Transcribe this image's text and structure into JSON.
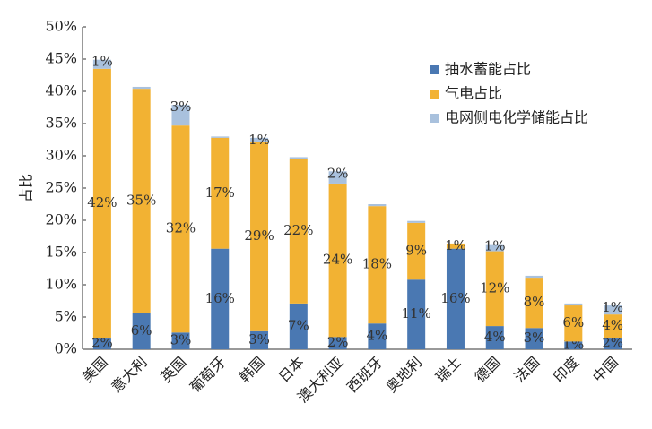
{
  "chart_data": {
    "type": "stacked_bar",
    "y_label": "占比",
    "categories": [
      "美国",
      "意大利",
      "英国",
      "葡萄牙",
      "韩国",
      "日本",
      "澳大利亚",
      "西班牙",
      "奥地利",
      "瑞士",
      "德国",
      "法国",
      "印度",
      "中国"
    ],
    "series": [
      {
        "name": "抽水蓄能占比",
        "color": "#4a78b2",
        "values": [
          1.8,
          5.6,
          2.6,
          15.6,
          2.8,
          7.1,
          1.9,
          4.0,
          10.8,
          15.6,
          3.6,
          3.3,
          1.2,
          1.8
        ],
        "value_labels": [
          "2%",
          "6%",
          "3%",
          "16%",
          "3%",
          "7%",
          "2%",
          "4%",
          "11%",
          "16%",
          "4%",
          "3%",
          "1%",
          "2%"
        ]
      },
      {
        "name": "气电占比",
        "color": "#f2b233",
        "values": [
          41.7,
          34.8,
          32.1,
          17.2,
          29.4,
          22.4,
          23.8,
          18.2,
          8.8,
          0.8,
          11.6,
          7.8,
          5.6,
          3.6
        ],
        "value_labels": [
          "42%",
          "35%",
          "32%",
          "17%",
          "29%",
          "22%",
          "24%",
          "18%",
          "9%",
          "1%",
          "12%",
          "8%",
          "6%",
          "4%"
        ]
      },
      {
        "name": "电网侧电化学储能占比",
        "color": "#a9c1dd",
        "values": [
          1.4,
          0.3,
          3.2,
          0.2,
          0.6,
          0.3,
          1.9,
          0.3,
          0.3,
          0,
          1.1,
          0.3,
          0.3,
          1.4
        ],
        "value_labels": [
          "1%",
          null,
          "3%",
          null,
          "1%",
          null,
          "2%",
          null,
          null,
          null,
          "1%",
          null,
          null,
          "1%"
        ]
      }
    ],
    "ylim": [
      0,
      50
    ],
    "yticks": [
      {
        "value": 0,
        "label": "0%"
      },
      {
        "value": 5,
        "label": "5%"
      },
      {
        "value": 10,
        "label": "10%"
      },
      {
        "value": 15,
        "label": "15%"
      },
      {
        "value": 20,
        "label": "20%"
      },
      {
        "value": 25,
        "label": "25%"
      },
      {
        "value": 30,
        "label": "30%"
      },
      {
        "value": 35,
        "label": "35%"
      },
      {
        "value": 40,
        "label": "40%"
      },
      {
        "value": 45,
        "label": "45%"
      },
      {
        "value": 50,
        "label": "50%"
      }
    ],
    "legend": "top-right"
  }
}
